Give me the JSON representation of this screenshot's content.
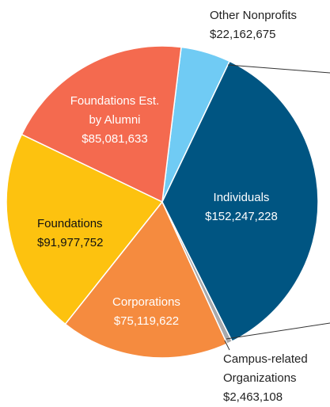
{
  "chart_data": {
    "type": "pie",
    "categories": [
      "Individuals",
      "Campus-related Organizations",
      "Corporations",
      "Foundations",
      "Foundations Est. by Alumni",
      "Other Nonprofits"
    ],
    "values": [
      152247228,
      2463108,
      75119622,
      91977752,
      85081633,
      22162675
    ],
    "value_labels": [
      "$152,247,228",
      "$2,463,108",
      "$75,119,622",
      "$91,977,752",
      "$85,081,633",
      "$22,162,675"
    ],
    "colors": [
      "#005582",
      "#a7a9ac",
      "#f58b3f",
      "#fdc20f",
      "#f46a4f",
      "#70cbf4"
    ]
  }
}
